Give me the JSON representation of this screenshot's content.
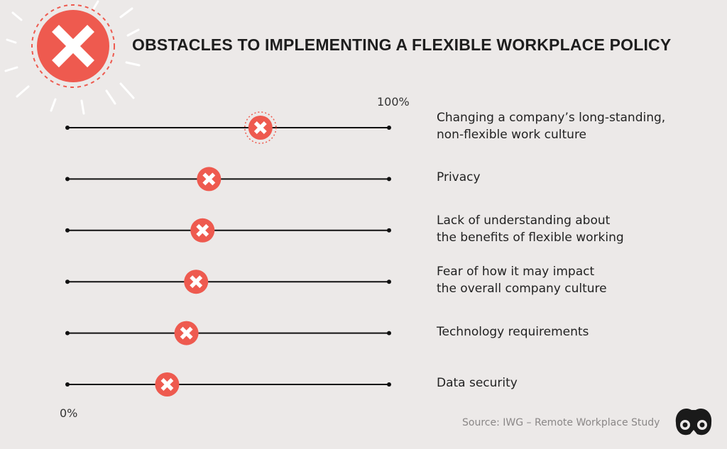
{
  "title": "OBSTACLES TO IMPLEMENTING A FLEXIBLE WORKPLACE POLICY",
  "source": "Source: IWG – Remote Workplace Study",
  "colors": {
    "background": "#ece9e8",
    "marker": "#ee5a4f",
    "axis_line": "#111111",
    "text": "#1e1e1e",
    "source_text": "#8a8787"
  },
  "icons": {
    "hero": "x-mark-burst-icon",
    "marker": "x-mark-icon",
    "logo": "binoculars-logo-icon"
  },
  "chart_data": {
    "type": "scatter",
    "title": "OBSTACLES TO IMPLEMENTING A FLEXIBLE WORKPLACE POLICY",
    "axis": {
      "min_label": "0%",
      "max_label": "100%",
      "xlim": [
        0,
        100
      ]
    },
    "categories": [
      {
        "label_lines": [
          "Changing a company’s long-standing,",
          "non-flexible work culture"
        ],
        "value": 60
      },
      {
        "label_lines": [
          "Privacy"
        ],
        "value": 44
      },
      {
        "label_lines": [
          "Lack of understanding about",
          "the benefits of flexible working"
        ],
        "value": 42
      },
      {
        "label_lines": [
          "Fear of how it may impact",
          "the overall company culture"
        ],
        "value": 40
      },
      {
        "label_lines": [
          "Technology requirements"
        ],
        "value": 37
      },
      {
        "label_lines": [
          "Data security"
        ],
        "value": 31
      }
    ],
    "highlighted_index": 0
  }
}
